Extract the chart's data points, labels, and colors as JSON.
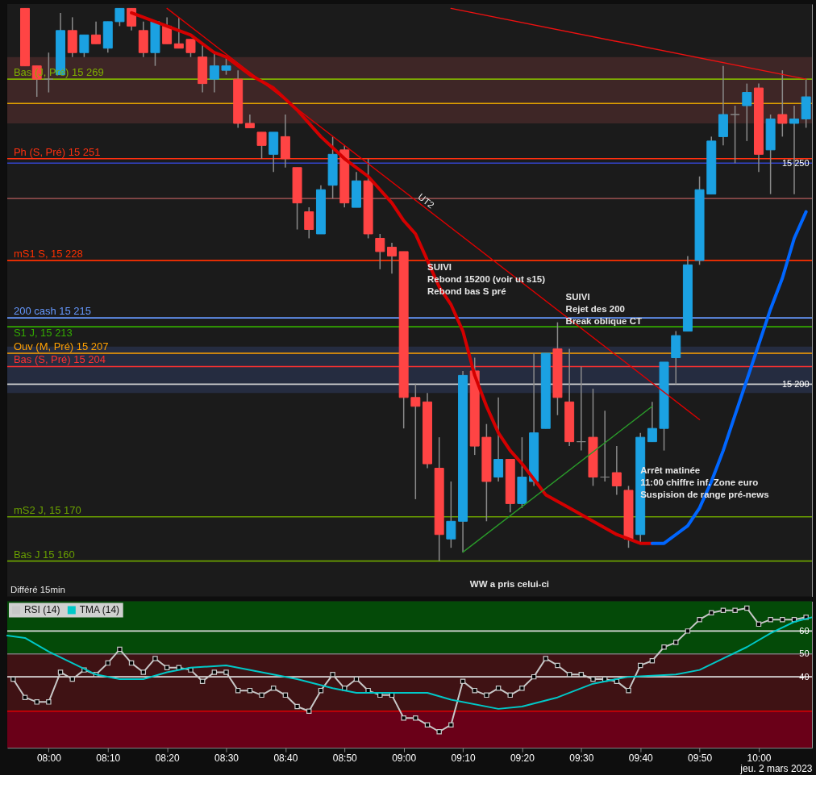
{
  "chart_data": [
    {
      "type": "candlestick",
      "xlim": [
        7.8833,
        10.15
      ],
      "ylim": [
        15152,
        15286
      ],
      "yticks": [
        {
          "value": 15250,
          "label": "15 250"
        },
        {
          "value": 15200,
          "label": "15 200"
        }
      ],
      "tick_labels": "y",
      "grid": false,
      "x": [
        7.9333,
        7.9667,
        8,
        8.0333,
        8.0667,
        8.1,
        8.1333,
        8.1667,
        8.2,
        8.2333,
        8.2667,
        8.3,
        8.3333,
        8.3667,
        8.4,
        8.4333,
        8.4667,
        8.5,
        8.5333,
        8.5667,
        8.6,
        8.6333,
        8.6667,
        8.7,
        8.7333,
        8.7667,
        8.8,
        8.8333,
        8.8667,
        8.9,
        8.9333,
        8.9667,
        9,
        9.0333,
        9.0667,
        9.1,
        9.1333,
        9.1667,
        9.2,
        9.2333,
        9.2667,
        9.3,
        9.3333,
        9.3667,
        9.4,
        9.4333,
        9.4667,
        9.5,
        9.5333,
        9.5667,
        9.6,
        9.6333,
        9.6667,
        9.7,
        9.7333,
        9.7667,
        9.8,
        9.8333,
        9.8667,
        9.9,
        9.9333,
        9.9667,
        10,
        10.0333,
        10.0667,
        10.1,
        10.1333
      ],
      "ohlc": [
        [
          15285,
          15285,
          15272,
          15272
        ],
        [
          15272,
          15272,
          15265,
          15269
        ],
        [
          15269,
          15275,
          15266,
          15269
        ],
        [
          15270,
          15284,
          15270,
          15280
        ],
        [
          15280,
          15283,
          15274,
          15275
        ],
        [
          15275,
          15279,
          15274,
          15279
        ],
        [
          15279,
          15282,
          15277,
          15277
        ],
        [
          15276,
          15282,
          15275,
          15282
        ],
        [
          15282,
          15285,
          15281,
          15285
        ],
        [
          15285,
          15285,
          15280,
          15281
        ],
        [
          15280,
          15282,
          15274,
          15275
        ],
        [
          15275,
          15282,
          15272,
          15282
        ],
        [
          15281,
          15283,
          15277,
          15277
        ],
        [
          15277,
          15283,
          15276,
          15276
        ],
        [
          15278,
          15278,
          15274,
          15275
        ],
        [
          15274,
          15277,
          15266,
          15268
        ],
        [
          15269,
          15275,
          15266,
          15272
        ],
        [
          15271,
          15274,
          15270,
          15272
        ],
        [
          15269,
          15271,
          15258,
          15259
        ],
        [
          15259,
          15261,
          15258,
          15258
        ],
        [
          15257,
          15257,
          15251,
          15254
        ],
        [
          15252,
          15257,
          15248,
          15257
        ],
        [
          15256,
          15261,
          15249,
          15251
        ],
        [
          15249,
          15249,
          15235,
          15241
        ],
        [
          15239,
          15240,
          15233,
          15235
        ],
        [
          15234,
          15245,
          15234,
          15244
        ],
        [
          15245,
          15256,
          15242,
          15252
        ],
        [
          15253,
          15254,
          15240,
          15241
        ],
        [
          15240,
          15248,
          15240,
          15246
        ],
        [
          15246,
          15251,
          15233,
          15234
        ],
        [
          15233,
          15234,
          15226,
          15230
        ],
        [
          15231,
          15232,
          15225,
          15229
        ],
        [
          15230,
          15230,
          15190,
          15197
        ],
        [
          15197,
          15200,
          15174,
          15195
        ],
        [
          15196,
          15198,
          15181,
          15182
        ],
        [
          15181,
          15188,
          15160,
          15166
        ],
        [
          15165,
          15178,
          15163,
          15169
        ],
        [
          15169,
          15203,
          15162,
          15202
        ],
        [
          15203,
          15206,
          15184,
          15186
        ],
        [
          15188,
          15191,
          15169,
          15178
        ],
        [
          15179,
          15197,
          15178,
          15183
        ],
        [
          15183,
          15183,
          15171,
          15173
        ],
        [
          15173,
          15188,
          15172,
          15179
        ],
        [
          15178,
          15207,
          15177,
          15189
        ],
        [
          15190,
          15207,
          15190,
          15207
        ],
        [
          15208,
          15214,
          15193,
          15197
        ],
        [
          15196,
          15208,
          15186,
          15187
        ],
        [
          15187,
          15204,
          15185,
          15187
        ],
        [
          15188,
          15199,
          15177,
          15179
        ],
        [
          15179,
          15194,
          15178,
          15179
        ],
        [
          15180,
          15186,
          15175,
          15177
        ],
        [
          15176,
          15177,
          15163,
          15165
        ],
        [
          15166,
          15189,
          15164,
          15188
        ],
        [
          15187,
          15196,
          15187,
          15190
        ],
        [
          15190,
          15205,
          15185,
          15205
        ],
        [
          15206,
          15212,
          15200,
          15211
        ],
        [
          15212,
          15229,
          15212,
          15227
        ],
        [
          15228,
          15247,
          15227,
          15244
        ],
        [
          15243,
          15256,
          15243,
          15255
        ],
        [
          15256,
          15272,
          15254,
          15261
        ],
        [
          15261,
          15263,
          15250,
          15261
        ],
        [
          15263,
          15268,
          15255,
          15266
        ],
        [
          15267,
          15268,
          15248,
          15252
        ],
        [
          15253,
          15261,
          15243,
          15260
        ],
        [
          15261,
          15271,
          15256,
          15259
        ],
        [
          15259,
          15263,
          15243,
          15260
        ],
        [
          15260,
          15269,
          15258,
          15265
        ]
      ],
      "colors": [
        "#ff4444",
        "#ff4444",
        "#888888",
        "#1ba1e2",
        "#ff4444",
        "#1ba1e2",
        "#ff4444",
        "#1ba1e2",
        "#1ba1e2",
        "#ff4444",
        "#ff4444",
        "#1ba1e2",
        "#ff4444",
        "#ff4444",
        "#ff4444",
        "#ff4444",
        "#1ba1e2",
        "#1ba1e2",
        "#ff4444",
        "#ff4444",
        "#ff4444",
        "#1ba1e2",
        "#ff4444",
        "#ff4444",
        "#ff4444",
        "#1ba1e2",
        "#1ba1e2",
        "#ff4444",
        "#1ba1e2",
        "#ff4444",
        "#ff4444",
        "#ff4444",
        "#ff4444",
        "#ff4444",
        "#ff4444",
        "#ff4444",
        "#1ba1e2",
        "#1ba1e2",
        "#ff4444",
        "#ff4444",
        "#1ba1e2",
        "#ff4444",
        "#1ba1e2",
        "#1ba1e2",
        "#1ba1e2",
        "#ff4444",
        "#ff4444",
        "#888888",
        "#ff4444",
        "#888888",
        "#ff4444",
        "#ff4444",
        "#1ba1e2",
        "#1ba1e2",
        "#1ba1e2",
        "#1ba1e2",
        "#1ba1e2",
        "#1ba1e2",
        "#1ba1e2",
        "#1ba1e2",
        "#888888",
        "#1ba1e2",
        "#ff4444",
        "#1ba1e2",
        "#ff4444",
        "#1ba1e2",
        "#1ba1e2"
      ],
      "bands": [
        {
          "axis": "y",
          "from": 15259,
          "to": 15274,
          "color": "#3e2626"
        },
        {
          "axis": "y",
          "from": 15198,
          "to": 15208.5,
          "color": "#252c40"
        }
      ],
      "ref_lines": [
        {
          "axis": "y",
          "value": 15269,
          "label": "Bas (J, Pré) 15 269",
          "color": "#7fb000"
        },
        {
          "axis": "y",
          "value": 15263.5,
          "color": "#e0a000"
        },
        {
          "axis": "y",
          "value": 15251,
          "label": "Ph (S, Pré) 15 251",
          "color": "#ff3010"
        },
        {
          "axis": "y",
          "value": 15250,
          "color": "#3344cc"
        },
        {
          "axis": "y",
          "value": 15242,
          "color": "#8a4a4a"
        },
        {
          "axis": "y",
          "value": 15228,
          "label": "mS1 S, 15 228",
          "color": "#ff3000"
        },
        {
          "axis": "y",
          "value": 15215,
          "label": "200 cash 15 215",
          "color": "#6699ff"
        },
        {
          "axis": "y",
          "value": 15213,
          "label": "S1 J, 15 213",
          "color": "#33aa00"
        },
        {
          "axis": "y",
          "value": 15207,
          "label": "Ouv (M, Pré) 15 207",
          "color": "#ffa000"
        },
        {
          "axis": "y",
          "value": 15204,
          "label": "Bas (S, Pré) 15 204",
          "color": "#ff3030"
        },
        {
          "axis": "y",
          "value": 15200,
          "color": "#cccccc"
        },
        {
          "axis": "y",
          "value": 15170,
          "label": "mS2 J, 15 170",
          "color": "#6aa000"
        },
        {
          "axis": "y",
          "value": 15160,
          "label": "Bas J 15 160",
          "color": "#6aa000"
        }
      ],
      "series": [
        {
          "type": "line",
          "color": "#d40000",
          "x": [
            8.2333,
            8.2667,
            8.3333,
            8.4,
            8.4667,
            8.5,
            8.5667,
            8.6333,
            8.7,
            8.7667,
            8.8333,
            8.9,
            8.9667,
            9,
            9.0333,
            9.0667,
            9.1,
            9.1333,
            9.1667,
            9.2,
            9.2333,
            9.2667,
            9.3,
            9.3333,
            9.4,
            9.4667,
            9.5333,
            9.6,
            9.6667,
            9.7
          ],
          "values": [
            15284,
            15283,
            15281,
            15279,
            15275,
            15274,
            15270,
            15267,
            15262,
            15256,
            15251,
            15247,
            15241,
            15237,
            15234,
            15228,
            15222,
            15218,
            15212,
            15202,
            15195,
            15189,
            15185,
            15182,
            15175,
            15172,
            15169,
            15166,
            15164,
            15164
          ]
        },
        {
          "type": "line",
          "color": "#0066ff",
          "x": [
            9.7,
            9.7333,
            9.7667,
            9.8,
            9.8333,
            9.8667,
            9.9,
            9.9333,
            9.9667,
            10,
            10.0333,
            10.0667,
            10.1,
            10.1333
          ],
          "values": [
            15164,
            15164,
            15166,
            15168,
            15172,
            15178,
            15185,
            15193,
            15201,
            15209,
            15217,
            15224,
            15233,
            15239
          ]
        },
        {
          "type": "line",
          "color": "#dd0000",
          "x": [
            8.3333,
            9.8333
          ],
          "values": [
            15285,
            15192
          ]
        },
        {
          "type": "line",
          "color": "#ee1111",
          "x": [
            9.1333,
            10.1333
          ],
          "values": [
            15285,
            15269
          ]
        },
        {
          "type": "line",
          "color": "#2a9a2a",
          "x": [
            9.1667,
            9.7
          ],
          "values": [
            15162,
            15195
          ]
        }
      ],
      "annotations": [
        {
          "text": "SUIVI\nRebond 15200 (voir ut s15)\nRebond bas S pré",
          "x": 9.0667,
          "y": 15228
        },
        {
          "text": "Arrêt matinée\n11:00 chiffre inf. Zone euro\nSuspision de range pré-news",
          "x": 9.6667,
          "y": 15182
        },
        "SUIVI\nRejet des 200\nBreak oblique CT",
        "WW a pris celui-ci",
        "UT2",
        "Différé 15min"
      ]
    },
    {
      "type": "line",
      "xlim": [
        7.8833,
        10.15
      ],
      "ylim": [
        9,
        73
      ],
      "yticks": [
        40,
        50,
        60
      ],
      "xticks": [
        {
          "value": 8,
          "label": "08:00"
        },
        {
          "value": 8.1667,
          "label": "08:10"
        },
        {
          "value": 8.3333,
          "label": "08:20"
        },
        {
          "value": 8.5,
          "label": "08:30"
        },
        {
          "value": 8.6667,
          "label": "08:40"
        },
        {
          "value": 8.8333,
          "label": "08:50"
        },
        {
          "value": 9,
          "label": "09:00"
        },
        {
          "value": 9.1667,
          "label": "09:10"
        },
        {
          "value": 9.3333,
          "label": "09:20"
        },
        {
          "value": 9.5,
          "label": "09:30"
        },
        {
          "value": 9.6667,
          "label": "09:40"
        },
        {
          "value": 9.8333,
          "label": "09:50"
        },
        {
          "value": 10,
          "label": "10:00"
        }
      ],
      "xlabel": "jeu. 2 mars 2023",
      "legend": "top left",
      "grid": false,
      "bands": [
        {
          "axis": "y",
          "from": 50,
          "to": 73,
          "color": "#044a08"
        },
        {
          "axis": "y",
          "from": 25,
          "to": 50,
          "color": "#3f1214"
        },
        {
          "axis": "y",
          "from": 9,
          "to": 25,
          "color": "#6a0018"
        }
      ],
      "ref_lines": [
        {
          "axis": "y",
          "value": 60,
          "color": "#dddddd"
        },
        {
          "axis": "y",
          "value": 50,
          "color": "#777777"
        },
        {
          "axis": "y",
          "value": 40,
          "color": "#dddddd"
        },
        {
          "axis": "y",
          "value": 25,
          "color": "#dd0000"
        }
      ],
      "series": [
        {
          "name": "RSI (14)",
          "color": "#c8c8c8",
          "marker": "square",
          "x": [
            7.9,
            7.9333,
            7.9667,
            8,
            8.0333,
            8.0667,
            8.1,
            8.1333,
            8.1667,
            8.2,
            8.2333,
            8.2667,
            8.3,
            8.3333,
            8.3667,
            8.4,
            8.4333,
            8.4667,
            8.5,
            8.5333,
            8.5667,
            8.6,
            8.6333,
            8.6667,
            8.7,
            8.7333,
            8.7667,
            8.8,
            8.8333,
            8.8667,
            8.9,
            8.9333,
            8.9667,
            9,
            9.0333,
            9.0667,
            9.1,
            9.1333,
            9.1667,
            9.2,
            9.2333,
            9.2667,
            9.3,
            9.3333,
            9.3667,
            9.4,
            9.4333,
            9.4667,
            9.5,
            9.5333,
            9.5667,
            9.6,
            9.6333,
            9.6667,
            9.7,
            9.7333,
            9.7667,
            9.8,
            9.8333,
            9.8667,
            9.9,
            9.9333,
            9.9667,
            10,
            10.0333,
            10.0667,
            10.1,
            10.1333
          ],
          "values": [
            39,
            31,
            29,
            29,
            42,
            39,
            43,
            41,
            46,
            52,
            46,
            42,
            48,
            44,
            44,
            43,
            38,
            42,
            42,
            34,
            34,
            32,
            35,
            32,
            27,
            25,
            34,
            41,
            35,
            39,
            34,
            32,
            32,
            22,
            22,
            19,
            16,
            19,
            38,
            34,
            32,
            35,
            32,
            35,
            40,
            48,
            45,
            41,
            41,
            39,
            39,
            38,
            34,
            45,
            47,
            53,
            55,
            60,
            65,
            68,
            69,
            69,
            70,
            63,
            65,
            65,
            65,
            66
          ]
        },
        {
          "name": "TMA (14)",
          "color": "#00c8c8",
          "marker": "none",
          "x": [
            7.8833,
            7.9333,
            8,
            8.0667,
            8.1333,
            8.2,
            8.2667,
            8.3333,
            8.4,
            8.5,
            8.6,
            8.7,
            8.8,
            8.8667,
            9,
            9.0667,
            9.1333,
            9.2667,
            9.3333,
            9.4333,
            9.5333,
            9.6333,
            9.7667,
            9.8333,
            9.9,
            9.9667,
            10.0333,
            10.1,
            10.15
          ],
          "values": [
            58,
            57,
            51,
            46,
            41,
            39,
            39,
            42,
            44,
            45,
            42,
            39,
            35,
            33,
            33,
            33,
            30,
            26,
            27,
            31,
            37,
            40,
            41,
            43,
            48,
            53,
            59,
            64,
            66
          ]
        }
      ]
    }
  ]
}
